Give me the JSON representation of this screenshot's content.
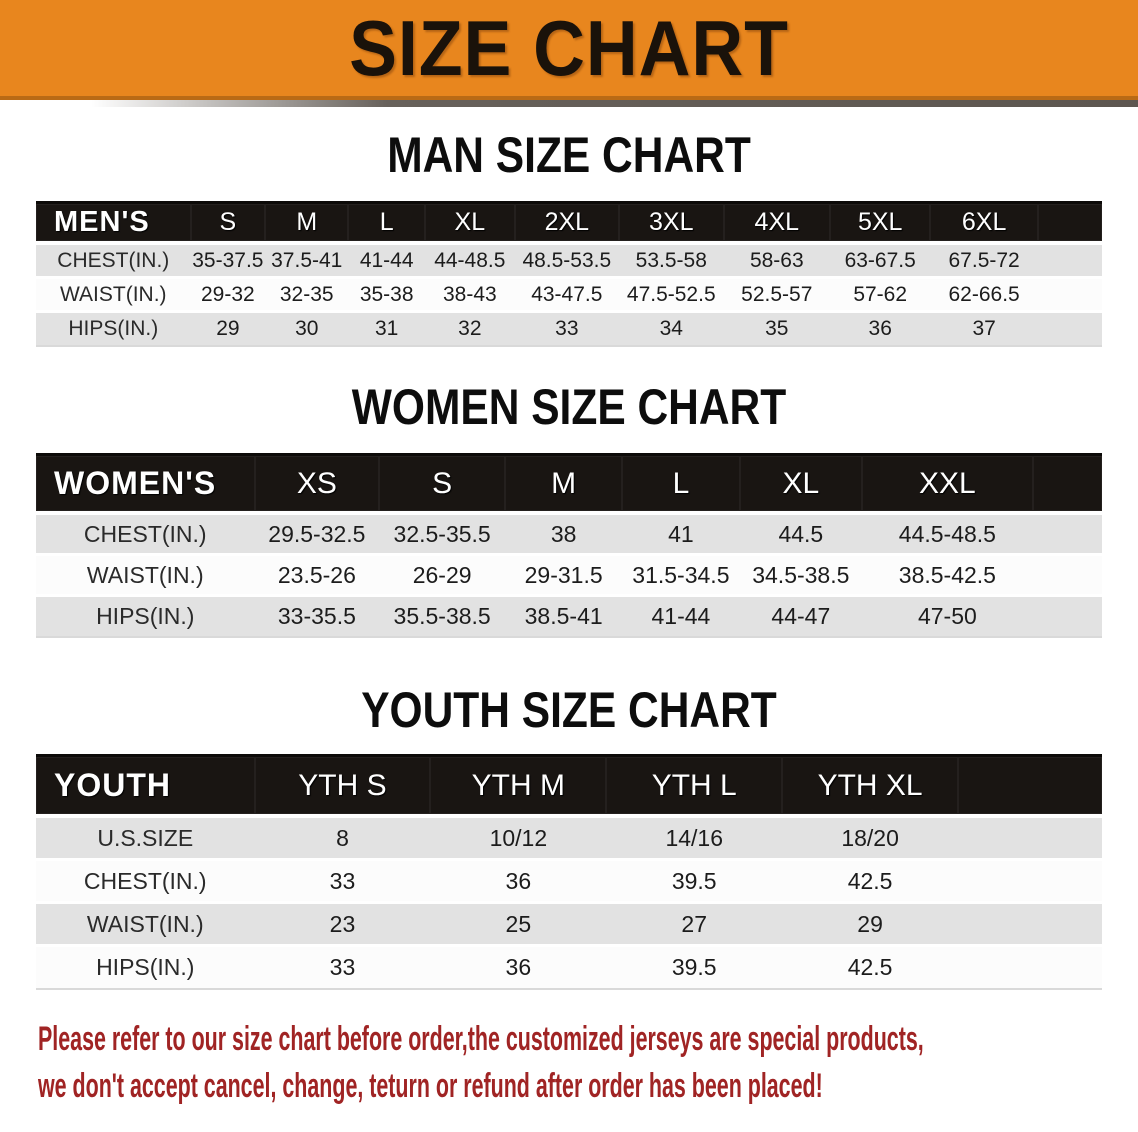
{
  "banner": {
    "title": "SIZE CHART"
  },
  "sections": [
    {
      "id": "men",
      "heading": "MAN SIZE CHART",
      "label_header": "MEN'S",
      "columns": [
        "S",
        "M",
        "L",
        "XL",
        "2XL",
        "3XL",
        "4XL",
        "5XL",
        "6XL"
      ],
      "rows": [
        {
          "label": "CHEST(IN.)",
          "values": [
            "35-37.5",
            "37.5-41",
            "41-44",
            "44-48.5",
            "48.5-53.5",
            "53.5-58",
            "58-63",
            "63-67.5",
            "67.5-72"
          ]
        },
        {
          "label": "WAIST(IN.)",
          "values": [
            "29-32",
            "32-35",
            "35-38",
            "38-43",
            "43-47.5",
            "47.5-52.5",
            "52.5-57",
            "57-62",
            "62-66.5"
          ]
        },
        {
          "label": "HIPS(IN.)",
          "values": [
            "29",
            "30",
            "31",
            "32",
            "33",
            "34",
            "35",
            "36",
            "37"
          ]
        }
      ]
    },
    {
      "id": "women",
      "heading": "WOMEN SIZE CHART",
      "label_header": "WOMEN'S",
      "columns": [
        "XS",
        "S",
        "M",
        "L",
        "XL",
        "XXL"
      ],
      "rows": [
        {
          "label": "CHEST(IN.)",
          "values": [
            "29.5-32.5",
            "32.5-35.5",
            "38",
            "41",
            "44.5",
            "44.5-48.5"
          ]
        },
        {
          "label": "WAIST(IN.)",
          "values": [
            "23.5-26",
            "26-29",
            "29-31.5",
            "31.5-34.5",
            "34.5-38.5",
            "38.5-42.5"
          ]
        },
        {
          "label": "HIPS(IN.)",
          "values": [
            "33-35.5",
            "35.5-38.5",
            "38.5-41",
            "41-44",
            "44-47",
            "47-50"
          ]
        }
      ]
    },
    {
      "id": "youth",
      "heading": "YOUTH SIZE CHART",
      "label_header": "YOUTH",
      "columns": [
        "YTH S",
        "YTH M",
        "YTH L",
        "YTH XL"
      ],
      "rows": [
        {
          "label": "U.S.SIZE",
          "values": [
            "8",
            "10/12",
            "14/16",
            "18/20"
          ]
        },
        {
          "label": "CHEST(IN.)",
          "values": [
            "33",
            "36",
            "39.5",
            "42.5"
          ]
        },
        {
          "label": "WAIST(IN.)",
          "values": [
            "23",
            "25",
            "27",
            "29"
          ]
        },
        {
          "label": "HIPS(IN.)",
          "values": [
            "33",
            "36",
            "39.5",
            "42.5"
          ]
        }
      ]
    }
  ],
  "disclaimer": {
    "line1": "Please refer to our size chart before order,the customized jerseys are special products,",
    "line2": "we don't accept cancel, change, teturn or refund after order has been placed!"
  },
  "colors": {
    "page_bg": "#ffffff",
    "banner_bg": "#e8861e",
    "banner_edge": "#b96a15",
    "banner_text": "#1a120a",
    "header_bg": "#191512",
    "header_text": "#ffffff",
    "row_gray": "#e2e2e2",
    "row_white": "#fcfcfc",
    "value_text": "#1c1c1c",
    "disclaimer_text": "#a02424"
  }
}
